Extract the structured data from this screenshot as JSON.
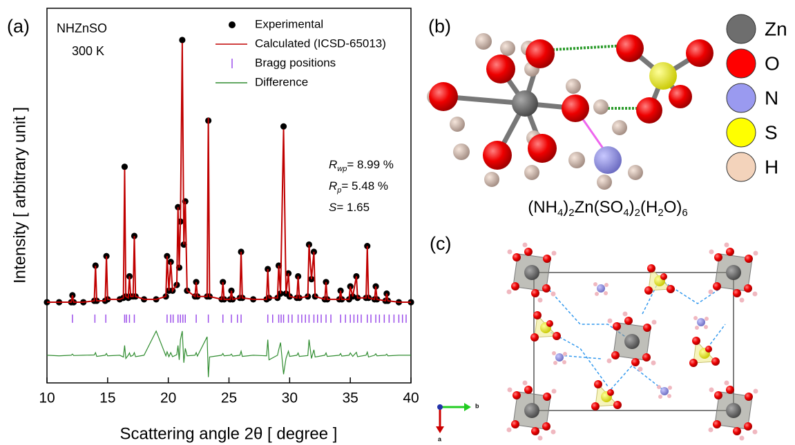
{
  "panels": {
    "a": "(a)",
    "b": "(b)",
    "c": "(c)"
  },
  "chart_data": {
    "type": "line",
    "xlabel": "Scattering angle 2θ [ degree ]",
    "ylabel": "Intensity [ arbitrary unit ]",
    "sample_label": "NHZnSO",
    "temperature": "300 K",
    "xlim": [
      10,
      40
    ],
    "xticks": [
      10,
      15,
      20,
      25,
      30,
      35,
      40
    ],
    "ylim": [
      -28,
      102
    ],
    "x": [
      10,
      11,
      12,
      12.1,
      12.2,
      13,
      13.9,
      14,
      14.1,
      14.8,
      14.9,
      15,
      16,
      16.3,
      16.4,
      16.5,
      16.7,
      16.8,
      16.9,
      17.1,
      17.2,
      17.3,
      18,
      19,
      19.8,
      19.9,
      20.05,
      20.2,
      20.35,
      20.7,
      20.8,
      20.9,
      21,
      21.15,
      21.28,
      21.4,
      21.55,
      22.2,
      22.3,
      22.4,
      23.2,
      23.3,
      23.4,
      24.4,
      24.5,
      24.6,
      25.1,
      25.2,
      25.3,
      25.9,
      26,
      26.1,
      27,
      28.1,
      28.2,
      28.3,
      29,
      29.1,
      29.25,
      29.5,
      29.7,
      29.9,
      30,
      30.6,
      30.7,
      30.8,
      31.5,
      31.6,
      31.8,
      32,
      32.1,
      32.9,
      33,
      33.1,
      34.1,
      34.2,
      34.3,
      34.9,
      35,
      35.2,
      35.5,
      35.6,
      36.3,
      36.4,
      36.5,
      37,
      37.1,
      37.2,
      37.9,
      38,
      38.1,
      39,
      40
    ],
    "series": [
      {
        "name": "Experimental",
        "color": "#000000",
        "style": "markers",
        "values": [
          0,
          0,
          0,
          2.4,
          0,
          0,
          0.5,
          12.7,
          0.5,
          0.5,
          16,
          1,
          1,
          1.5,
          47,
          2,
          1.5,
          9,
          2,
          2,
          23,
          2,
          1,
          1,
          2,
          16,
          4,
          14,
          4,
          6,
          33,
          12,
          28,
          91,
          20,
          35,
          4,
          2,
          7,
          2,
          2,
          63,
          2,
          1,
          7,
          1,
          1,
          4,
          1,
          1.5,
          17.5,
          1.5,
          1,
          1,
          11.5,
          1.5,
          1.5,
          12.7,
          3,
          61,
          3,
          10,
          2,
          1.5,
          9,
          1.5,
          2,
          20,
          8,
          17.5,
          2,
          1,
          7,
          1,
          1,
          4,
          1,
          1,
          5.5,
          2,
          9,
          1.5,
          1.5,
          19.5,
          1.5,
          1,
          5.5,
          1,
          0.5,
          3,
          0.5,
          0,
          0
        ]
      },
      {
        "name": "Calculated (ICSD-65013)",
        "color": "#c00000",
        "style": "line",
        "values": [
          0,
          0,
          0,
          2.4,
          0,
          0,
          0.5,
          12.7,
          0.5,
          0.5,
          16,
          1,
          1,
          1.5,
          46,
          2,
          1.5,
          9,
          2,
          2,
          23,
          2,
          1,
          1,
          2,
          16,
          4,
          14,
          4,
          6,
          33,
          12,
          28,
          90,
          20,
          35,
          4,
          2,
          7,
          2,
          2,
          64,
          2,
          1,
          7,
          1,
          1,
          4,
          1,
          1.5,
          17.5,
          1.5,
          1,
          1,
          11.5,
          1.5,
          1.5,
          12.7,
          3,
          60,
          3,
          10,
          2,
          1.5,
          9,
          1.5,
          2,
          20,
          8,
          17.5,
          2,
          1,
          7,
          1,
          1,
          4,
          1,
          1,
          5.5,
          2,
          9,
          1.5,
          1.5,
          19.5,
          1.5,
          1,
          5.5,
          1,
          0.5,
          3,
          0.5,
          0,
          0
        ]
      },
      {
        "name": "Difference",
        "color": "#2e8b2e",
        "style": "line",
        "values": [
          -18.4,
          -18.6,
          -18.4,
          -18,
          -18.5,
          -18.4,
          -18.3,
          -17.5,
          -18.8,
          -18.4,
          -17.8,
          -18.6,
          -18.4,
          -19,
          -15,
          -19.5,
          -18.4,
          -17.6,
          -18.8,
          -18.4,
          -17.5,
          -18.9,
          -18.4,
          -10,
          -18.6,
          -17.2,
          -18.9,
          -17.5,
          -18.9,
          -18.2,
          -15,
          -20,
          -13,
          -10,
          -21,
          -16,
          -18.6,
          -18.4,
          -17.5,
          -18.7,
          -12,
          -26,
          -19,
          -18.4,
          -17.8,
          -18.6,
          -18.4,
          -18,
          -18.7,
          -18.4,
          -17,
          -18.8,
          -18.4,
          -18.6,
          -13,
          -20,
          -18.4,
          -16.5,
          -14,
          -25,
          -19.5,
          -17,
          -18.8,
          -18.4,
          -17.6,
          -18.8,
          -18.5,
          -13,
          -19.5,
          -16.5,
          -19,
          -18.4,
          -17.6,
          -18.8,
          -18.4,
          -17.8,
          -18.7,
          -18.4,
          -17.6,
          -18.8,
          -17.4,
          -18.9,
          -18.4,
          -17.3,
          -19,
          -18.4,
          -17.9,
          -18.6,
          -18.4,
          -18,
          -18.6,
          -18.4,
          -18.4
        ]
      }
    ],
    "bragg": {
      "name": "Bragg positions",
      "color": "#9b4dea",
      "y": -5.7,
      "x": [
        12.1,
        13.95,
        14.85,
        16.4,
        16.55,
        16.8,
        17.2,
        19.9,
        20.2,
        20.4,
        20.8,
        21,
        21.2,
        21.4,
        22.3,
        23.3,
        24.5,
        25.2,
        25.7,
        26,
        28.2,
        28.6,
        29.1,
        29.3,
        29.5,
        29.9,
        30.2,
        30.7,
        31,
        31.3,
        31.6,
        32,
        32.3,
        32.6,
        33,
        33.4,
        34.2,
        34.6,
        35,
        35.3,
        35.6,
        35.9,
        36.4,
        36.7,
        37.1,
        37.4,
        37.8,
        38.2,
        38.6,
        39,
        39.3,
        39.6
      ]
    },
    "annotations": [
      {
        "symbol": "R",
        "sub": "wp",
        "text": "= 8.99 %"
      },
      {
        "symbol": "R",
        "sub": "p",
        "text": "= 5.48 %"
      },
      {
        "symbol": "S",
        "text": "= 1.65"
      }
    ]
  },
  "element_legend": [
    {
      "label": "Zn",
      "color": "#6e6e6e"
    },
    {
      "label": "O",
      "color": "#ff0000"
    },
    {
      "label": "N",
      "color": "#9a9af0"
    },
    {
      "label": "S",
      "color": "#ffff00"
    },
    {
      "label": "H",
      "color": "#f3d3bb"
    }
  ],
  "formula": [
    {
      "text": "(NH"
    },
    {
      "sub": "4"
    },
    {
      "text": ")"
    },
    {
      "sub": "2"
    },
    {
      "text": "Zn(SO"
    },
    {
      "sub": "4"
    },
    {
      "text": ")"
    },
    {
      "sub": "2"
    },
    {
      "text": "(H"
    },
    {
      "sub": "2"
    },
    {
      "text": "O)"
    },
    {
      "sub": "6"
    }
  ],
  "compass": {
    "b": "b",
    "a": "a"
  }
}
